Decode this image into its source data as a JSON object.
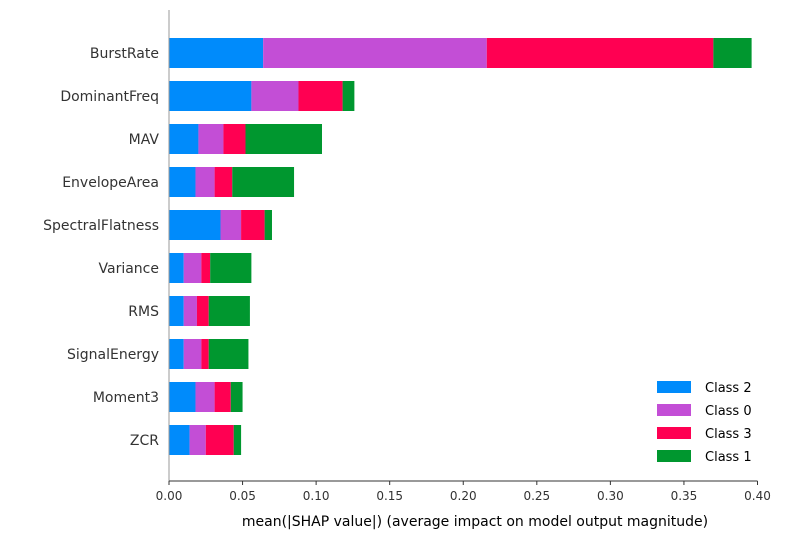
{
  "chart_data": {
    "type": "bar",
    "orientation": "horizontal",
    "stacked": true,
    "xlabel": "mean(|SHAP value|) (average impact on model output magnitude)",
    "ylabel": "",
    "xlim": [
      0,
      0.4
    ],
    "xticks": [
      "0.00",
      "0.05",
      "0.10",
      "0.15",
      "0.20",
      "0.25",
      "0.30",
      "0.35",
      "0.40"
    ],
    "xtick_values": [
      0,
      0.05,
      0.1,
      0.15,
      0.2,
      0.25,
      0.3,
      0.35,
      0.4
    ],
    "grid": false,
    "legend_position": "bottom-right",
    "categories": [
      "BurstRate",
      "DominantFreq",
      "MAV",
      "EnvelopeArea",
      "SpectralFlatness",
      "Variance",
      "RMS",
      "SignalEnergy",
      "Moment3",
      "ZCR"
    ],
    "series": [
      {
        "name": "Class 2",
        "color": "#008bfb",
        "values": [
          0.064,
          0.056,
          0.02,
          0.018,
          0.035,
          0.01,
          0.01,
          0.01,
          0.018,
          0.014
        ]
      },
      {
        "name": "Class 0",
        "color": "#c34ed6",
        "values": [
          0.152,
          0.032,
          0.017,
          0.013,
          0.014,
          0.012,
          0.009,
          0.012,
          0.013,
          0.011
        ]
      },
      {
        "name": "Class 3",
        "color": "#ff0052",
        "values": [
          0.154,
          0.03,
          0.015,
          0.012,
          0.016,
          0.006,
          0.008,
          0.005,
          0.011,
          0.019
        ]
      },
      {
        "name": "Class 1",
        "color": "#00972f",
        "values": [
          0.026,
          0.008,
          0.052,
          0.042,
          0.005,
          0.028,
          0.028,
          0.027,
          0.008,
          0.005
        ]
      }
    ]
  }
}
